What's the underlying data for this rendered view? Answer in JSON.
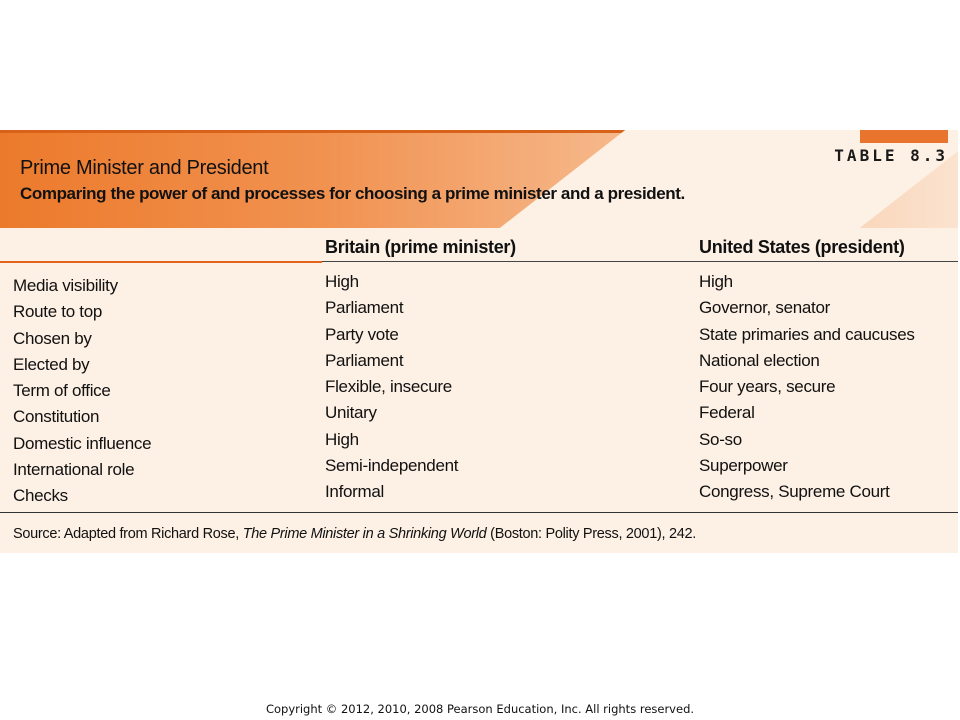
{
  "table": {
    "label": "TABLE 8.3",
    "title": "Prime Minister and President",
    "subtitle": "Comparing the power of and processes for choosing a prime minister and a president.",
    "columns": [
      "",
      "Britain (prime minister)",
      "United States (president)"
    ],
    "rows": [
      [
        "Media visibility",
        "High",
        "High"
      ],
      [
        "Route to top",
        "Parliament",
        "Governor, senator"
      ],
      [
        "Chosen by",
        "Party vote",
        "State primaries and caucuses"
      ],
      [
        "Elected by",
        "Parliament",
        "National election"
      ],
      [
        "Term of office",
        "Flexible, insecure",
        "Four years, secure"
      ],
      [
        "Constitution",
        "Unitary",
        "Federal"
      ],
      [
        "Domestic influence",
        "High",
        "So-so"
      ],
      [
        "International role",
        "Semi-independent",
        "Superpower"
      ],
      [
        "Checks",
        "Informal",
        "Congress, Supreme Court"
      ]
    ],
    "source": {
      "prefix": "Source: Adapted from Richard Rose, ",
      "title": "The Prime Minister in a Shrinking World",
      "suffix": " (Boston: Polity Press, 2001), 242."
    }
  },
  "footer": {
    "copyright": "Copyright © 2012, 2010, 2008 Pearson Education, Inc. All rights reserved."
  },
  "colors": {
    "accent": "#ec7a2b",
    "background": "#fdf0e4"
  }
}
